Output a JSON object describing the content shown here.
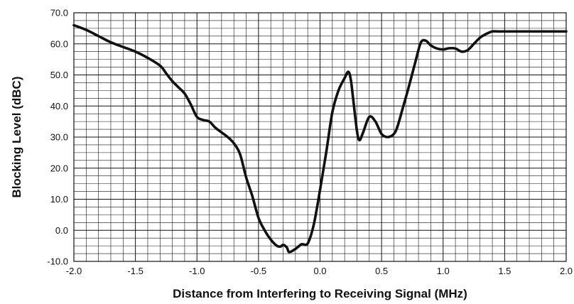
{
  "chart_data": {
    "type": "line",
    "title": "",
    "xlabel": "Distance from Interfering to Receiving Signal (MHz)",
    "ylabel": "Blocking Level (dBC)",
    "xlim": [
      -2.0,
      2.0
    ],
    "ylim": [
      -10.0,
      70.0
    ],
    "x_ticks": [
      -2.0,
      -1.5,
      -1.0,
      -0.5,
      0.0,
      0.5,
      1.0,
      1.5,
      2.0
    ],
    "x_tick_labels": [
      "-2.0",
      "-1.5",
      "-1.0",
      "-0.5",
      "0.0",
      "0.5",
      "1.0",
      "1.5",
      "2.0"
    ],
    "y_ticks": [
      -10.0,
      0.0,
      10.0,
      20.0,
      30.0,
      40.0,
      50.0,
      60.0,
      70.0
    ],
    "y_tick_labels": [
      "-10.0",
      "0.0",
      "10.0",
      "20.0",
      "30.0",
      "40.0",
      "50.0",
      "60.0",
      "70.0"
    ],
    "grid": true,
    "minor_grid": true,
    "legend": "none",
    "line_color": "#111111",
    "series": [
      {
        "x": [
          -2.0,
          -1.9,
          -1.8,
          -1.7,
          -1.6,
          -1.5,
          -1.4,
          -1.3,
          -1.25,
          -1.2,
          -1.15,
          -1.1,
          -1.05,
          -1.0,
          -0.95,
          -0.9,
          -0.85,
          -0.8,
          -0.75,
          -0.7,
          -0.65,
          -0.6,
          -0.55,
          -0.5,
          -0.45,
          -0.4,
          -0.35,
          -0.32,
          -0.3,
          -0.27,
          -0.25,
          -0.2,
          -0.15,
          -0.1,
          -0.05,
          0.0,
          0.05,
          0.1,
          0.15,
          0.2,
          0.23,
          0.25,
          0.27,
          0.3,
          0.32,
          0.35,
          0.4,
          0.45,
          0.5,
          0.55,
          0.6,
          0.63,
          0.67,
          0.72,
          0.78,
          0.82,
          0.86,
          0.9,
          0.95,
          1.0,
          1.05,
          1.1,
          1.15,
          1.2,
          1.25,
          1.3,
          1.35,
          1.4,
          1.45,
          1.5,
          1.55,
          1.6,
          1.65,
          1.7,
          1.75,
          1.8,
          1.85,
          1.9,
          1.95,
          2.0
        ],
        "values": [
          66.0,
          64.5,
          62.5,
          60.5,
          59.0,
          57.5,
          55.5,
          53.0,
          50.5,
          48.0,
          46.0,
          44.0,
          40.5,
          36.5,
          35.5,
          35.0,
          33.0,
          31.5,
          30.0,
          28.0,
          24.5,
          17.0,
          11.0,
          4.0,
          0.0,
          -3.0,
          -5.0,
          -5.2,
          -4.7,
          -5.5,
          -7.0,
          -6.0,
          -4.5,
          -4.2,
          2.0,
          13.0,
          25.0,
          38.0,
          45.0,
          49.0,
          51.0,
          48.5,
          42.0,
          32.0,
          29.0,
          31.5,
          36.5,
          35.0,
          31.0,
          30.0,
          31.0,
          33.5,
          39.0,
          46.0,
          55.0,
          60.5,
          61.0,
          59.5,
          58.5,
          58.2,
          58.6,
          58.5,
          57.5,
          58.0,
          60.0,
          62.0,
          63.2,
          64.0,
          64.0,
          64.0,
          64.0,
          64.0,
          64.0,
          64.0,
          64.0,
          64.0,
          64.0,
          64.0,
          64.0,
          64.0
        ]
      }
    ]
  }
}
